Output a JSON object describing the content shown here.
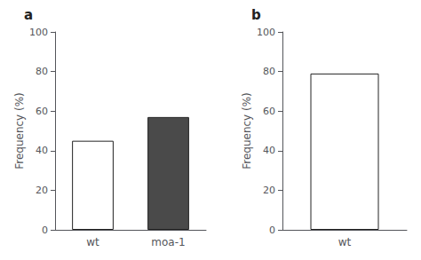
{
  "chart_data": [
    {
      "type": "bar",
      "title": "a",
      "categories": [
        "wt",
        "moa-1"
      ],
      "values": [
        45,
        57
      ],
      "colors": [
        "#ffffff",
        "#4a4a4a"
      ],
      "ylabel": "Frequency (%)",
      "ylim": [
        0,
        100
      ],
      "yticks": [
        0,
        20,
        40,
        60,
        80,
        100
      ],
      "grid": false
    },
    {
      "type": "bar",
      "title": "b",
      "categories": [
        "wt"
      ],
      "values": [
        79
      ],
      "colors": [
        "#ffffff"
      ],
      "ylabel": "Frequency (%)",
      "ylim": [
        0,
        100
      ],
      "yticks": [
        0,
        20,
        40,
        60,
        80,
        100
      ],
      "grid": false
    }
  ]
}
